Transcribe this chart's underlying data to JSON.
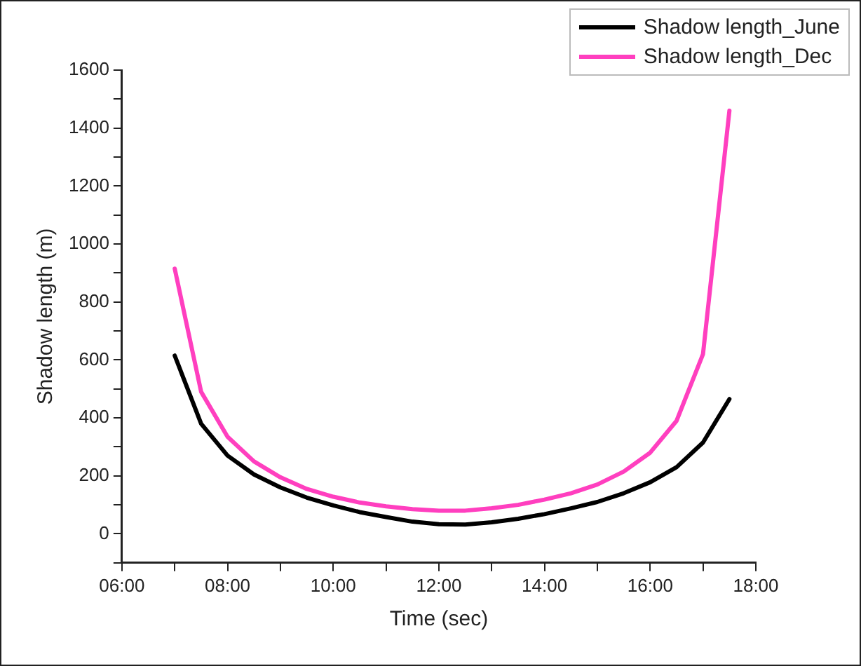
{
  "chart_data": {
    "type": "line",
    "xlabel": "Time (sec)",
    "ylabel": "Shadow length (m)",
    "x": [
      7,
      7.5,
      8,
      8.5,
      9,
      9.5,
      10,
      10.5,
      11,
      11.5,
      12,
      12.5,
      13,
      13.5,
      14,
      14.5,
      15,
      15.5,
      16,
      16.5,
      17,
      17.5
    ],
    "series": [
      {
        "name": "Shadow length_June",
        "color": "#000000",
        "values": [
          615,
          380,
          270,
          205,
          160,
          125,
          98,
          75,
          58,
          42,
          33,
          32,
          40,
          52,
          68,
          88,
          110,
          140,
          178,
          230,
          315,
          465
        ]
      },
      {
        "name": "Shadow length_Dec",
        "color": "#ff3fbf",
        "values": [
          915,
          490,
          335,
          250,
          195,
          155,
          128,
          108,
          95,
          85,
          80,
          80,
          88,
          100,
          118,
          140,
          170,
          215,
          280,
          390,
          620,
          1460
        ]
      }
    ],
    "xlim": [
      6,
      18
    ],
    "xticks": [
      {
        "value": 6,
        "label": "06:00"
      },
      {
        "value": 7,
        "label": null
      },
      {
        "value": 8,
        "label": "08:00"
      },
      {
        "value": 9,
        "label": null
      },
      {
        "value": 10,
        "label": "10:00"
      },
      {
        "value": 11,
        "label": null
      },
      {
        "value": 12,
        "label": "12:00"
      },
      {
        "value": 13,
        "label": null
      },
      {
        "value": 14,
        "label": "14:00"
      },
      {
        "value": 15,
        "label": null
      },
      {
        "value": 16,
        "label": "16:00"
      },
      {
        "value": 17,
        "label": null
      },
      {
        "value": 18,
        "label": "18:00"
      }
    ],
    "ylim": [
      -100,
      1600
    ],
    "yticks": [
      {
        "value": -100,
        "label": null
      },
      0,
      {
        "value": 100,
        "label": null
      },
      200,
      {
        "value": 300,
        "label": null
      },
      400,
      {
        "value": 500,
        "label": null
      },
      600,
      {
        "value": 700,
        "label": null
      },
      800,
      {
        "value": 900,
        "label": null
      },
      1000,
      {
        "value": 1100,
        "label": null
      },
      1200,
      {
        "value": 1300,
        "label": null
      },
      1400,
      {
        "value": 1500,
        "label": null
      },
      1600
    ],
    "grid": false,
    "legend": "top right",
    "marker": "none",
    "line_style": "solid"
  }
}
